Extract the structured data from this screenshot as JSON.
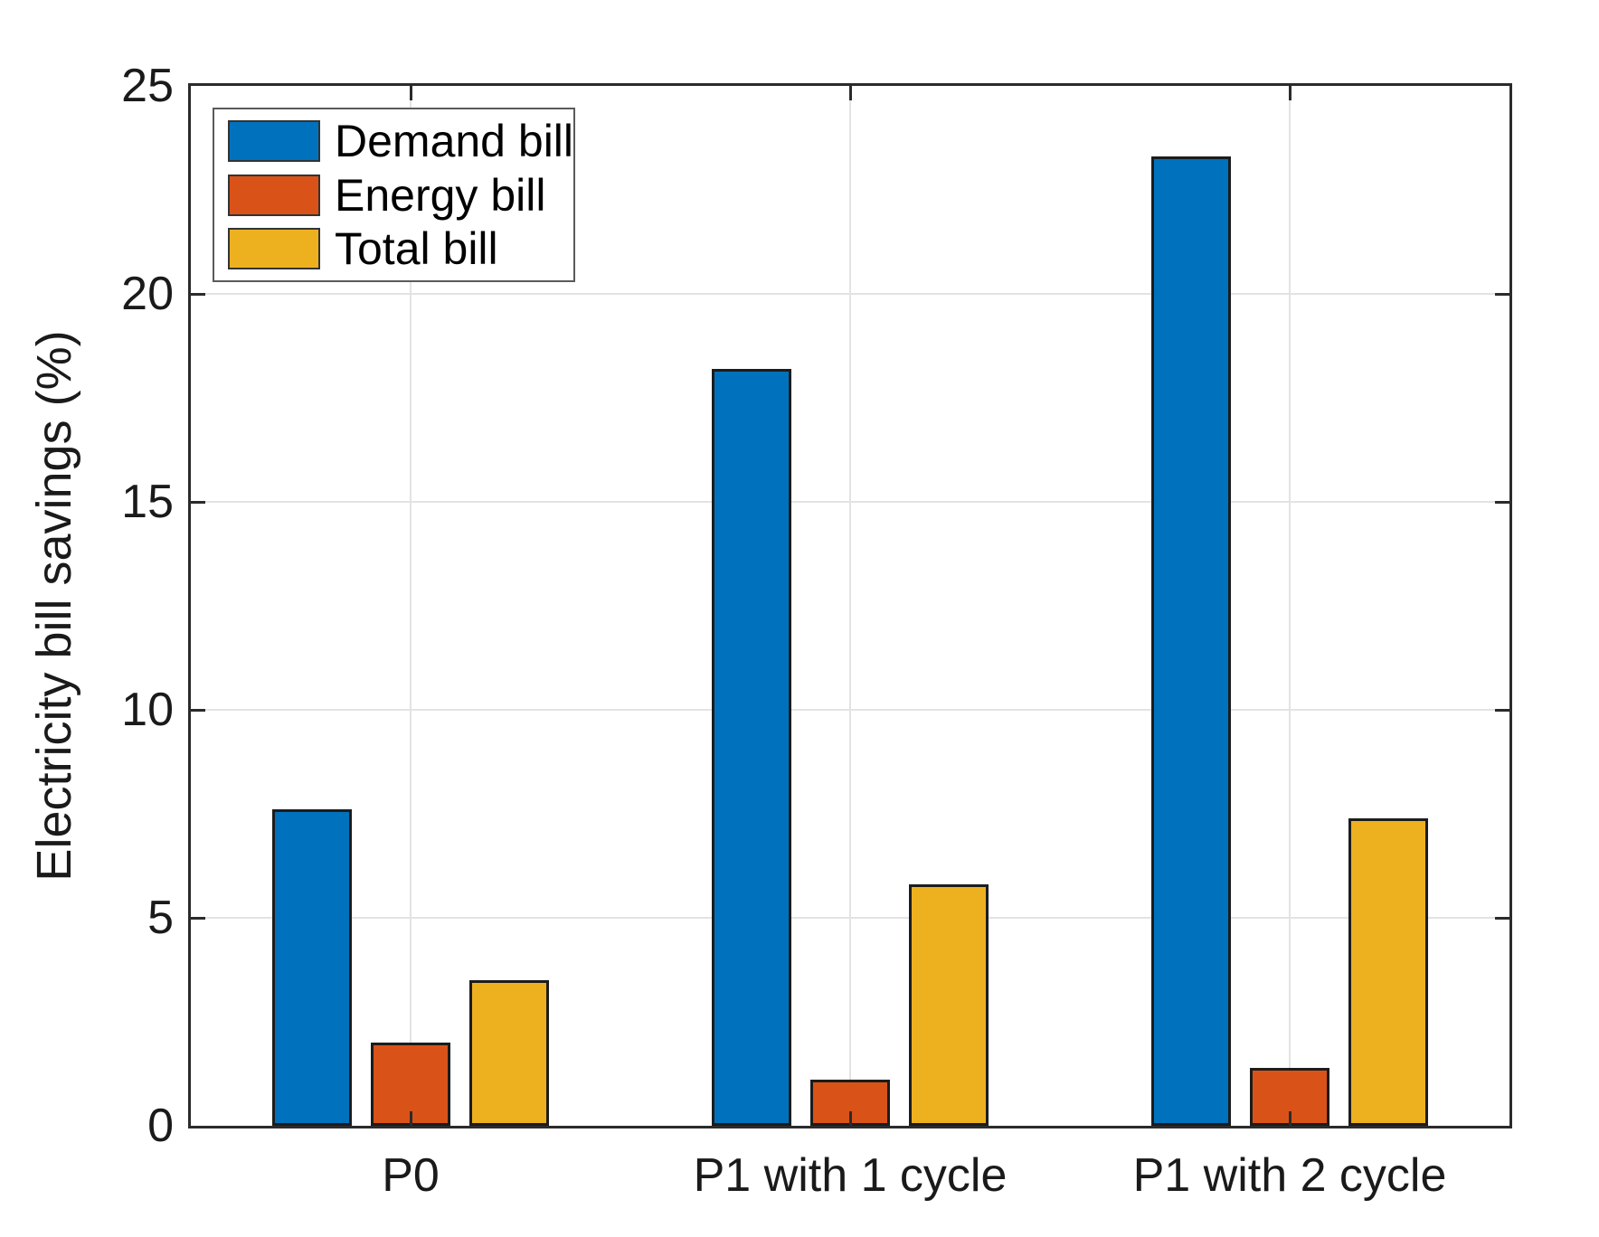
{
  "chart_data": {
    "type": "bar",
    "title": "",
    "xlabel": "",
    "ylabel": "Electricity bill savings (%)",
    "categories": [
      "P0",
      "P1 with 1 cycle",
      "P1 with 2 cycle"
    ],
    "series": [
      {
        "name": "Demand bill",
        "color": "#0072BD",
        "values": [
          7.6,
          18.2,
          23.3
        ]
      },
      {
        "name": "Energy bill",
        "color": "#D95319",
        "values": [
          2.0,
          1.1,
          1.4
        ]
      },
      {
        "name": "Total bill",
        "color": "#EDB120",
        "values": [
          3.5,
          5.8,
          7.4
        ]
      }
    ],
    "ylim": [
      0,
      25
    ],
    "yticks": [
      0,
      5,
      10,
      15,
      20,
      25
    ],
    "grid": true,
    "legend_position": "top-left"
  },
  "colors": {
    "axis": "#2b2b2b",
    "grid": "#e3e3e3",
    "bar_edge": "#1c1c1c",
    "legend_border": "#5a5a5a",
    "background": "#ffffff"
  }
}
